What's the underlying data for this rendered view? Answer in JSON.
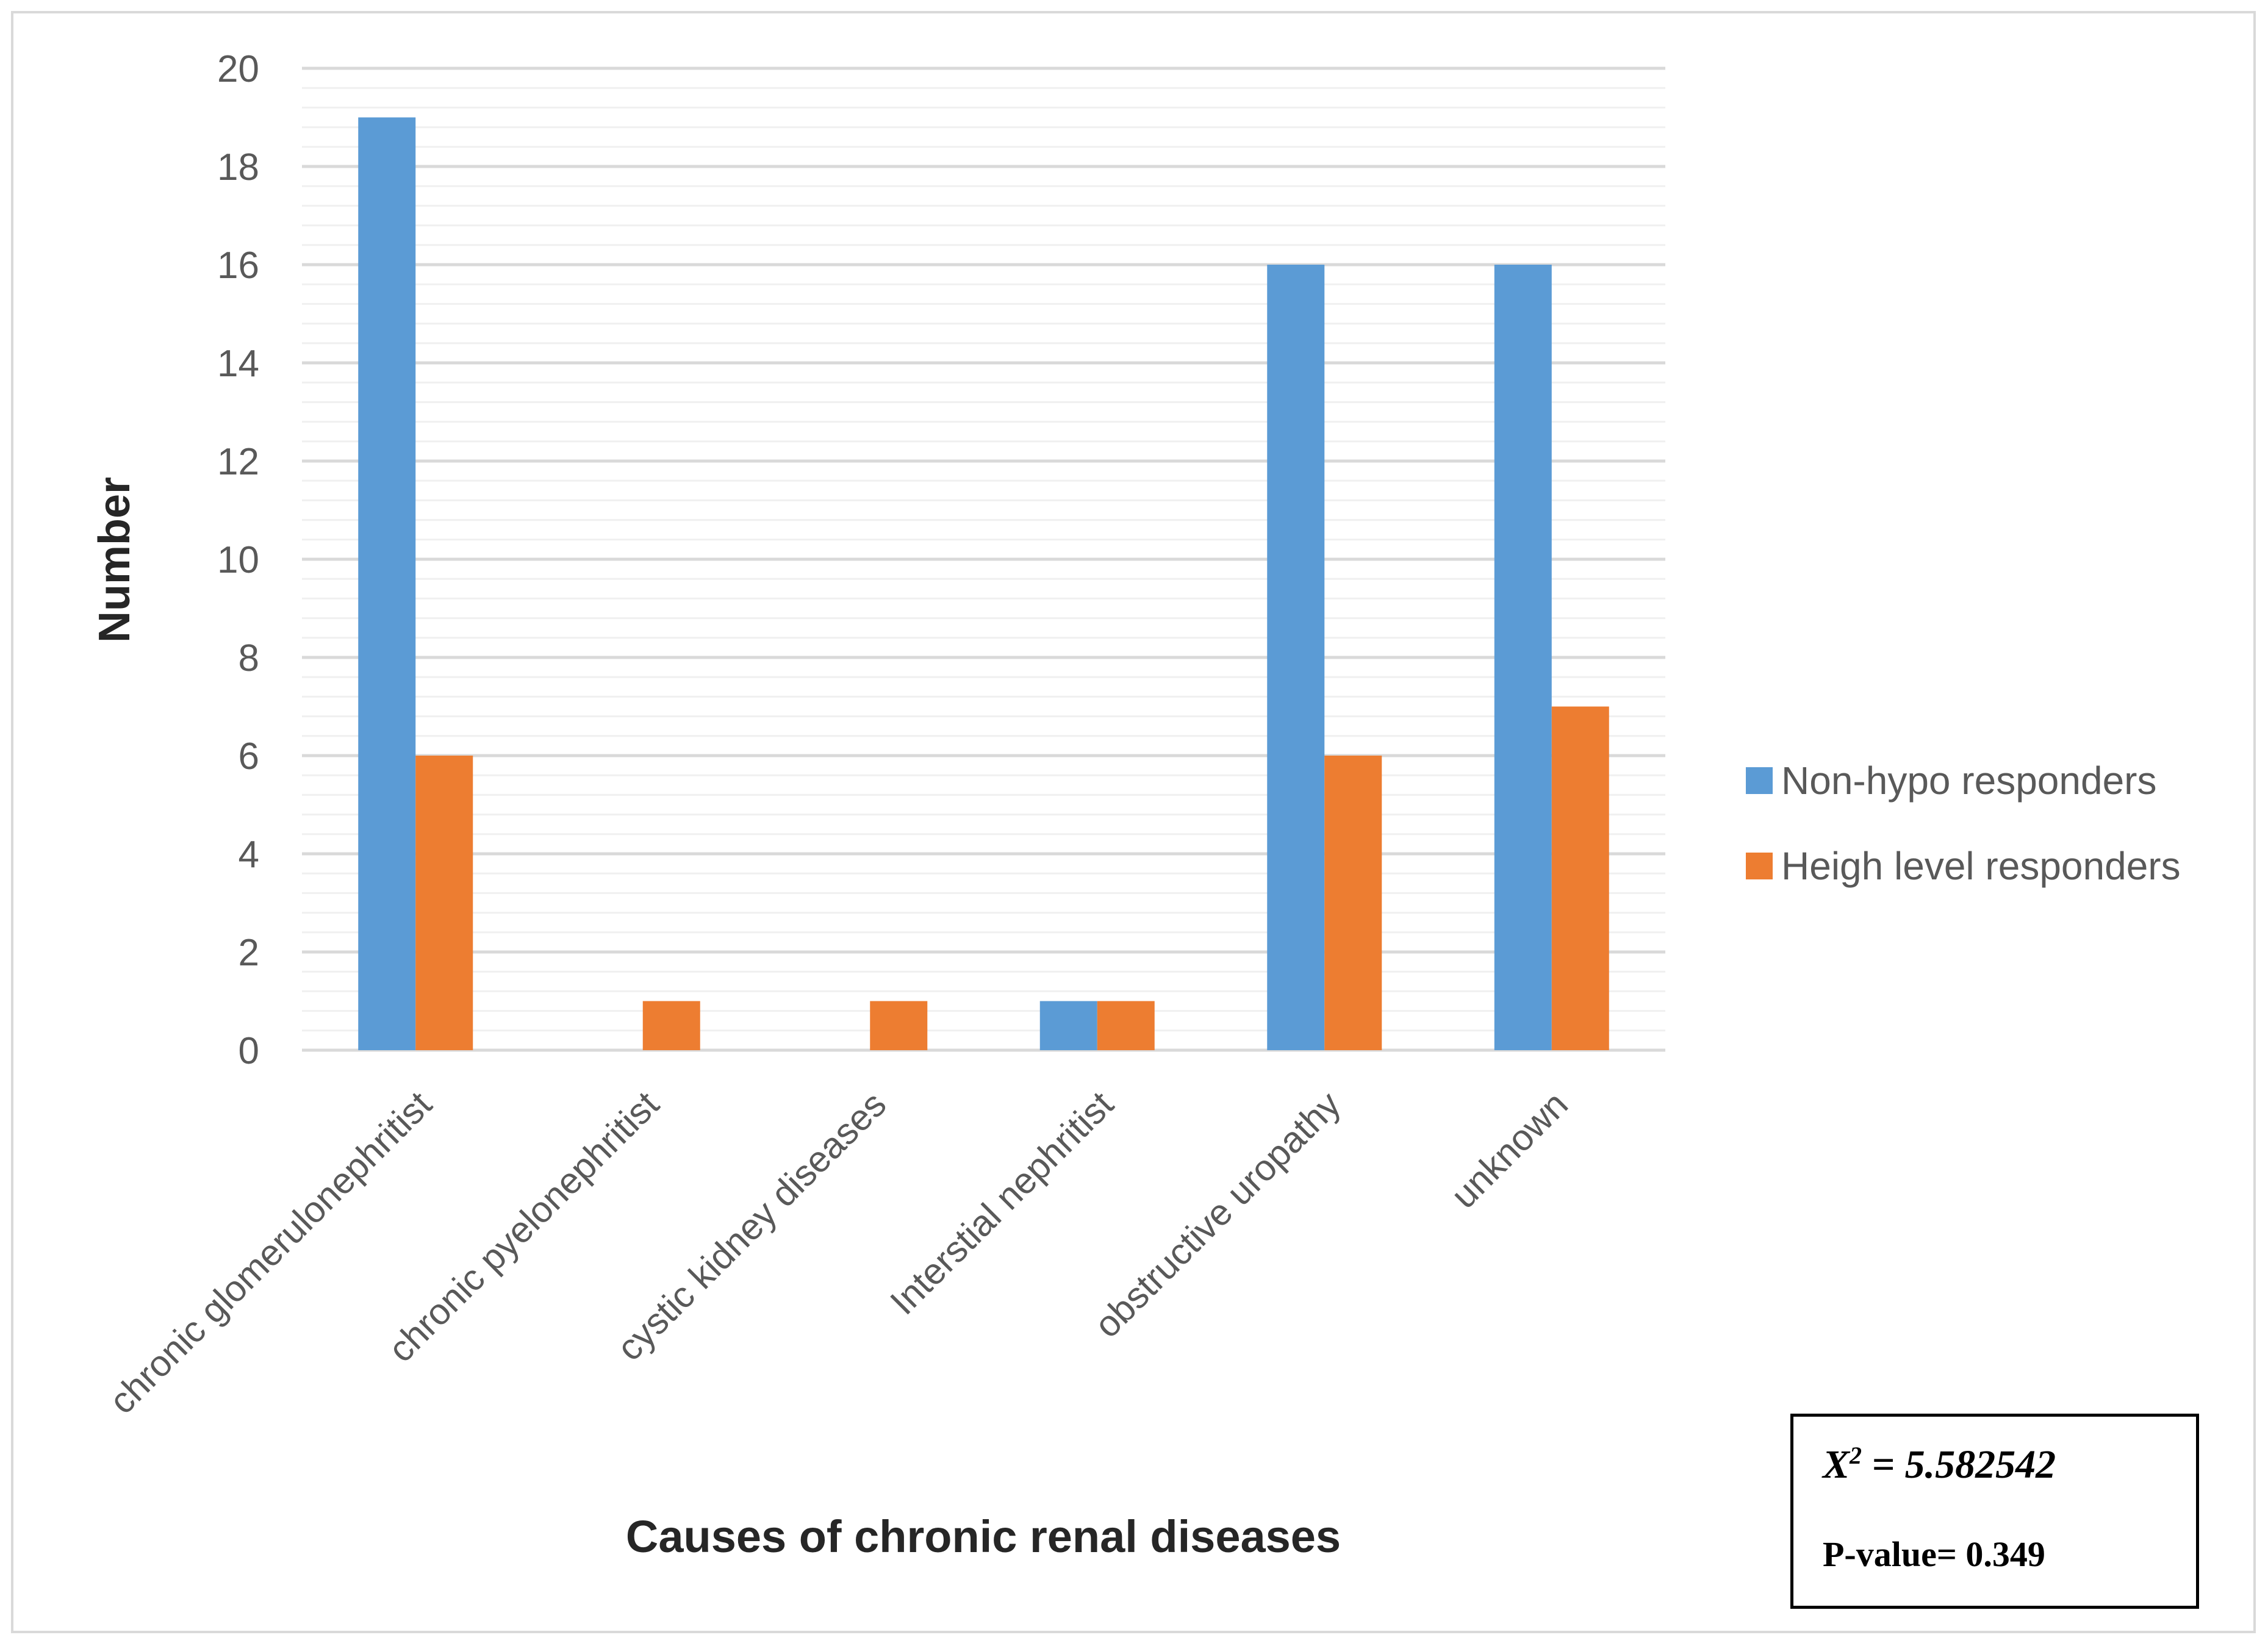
{
  "chart_data": {
    "type": "bar",
    "title": "",
    "xlabel": "Causes of chronic renal diseases",
    "ylabel": "Number",
    "categories": [
      "chronic glomerulonephritist",
      "chronic pyelonephritist",
      "cystic kidney diseases",
      "Interstial nephritist",
      "obstructive uropathy",
      "unknown"
    ],
    "series": [
      {
        "name": "Non-hypo responders",
        "values": [
          19,
          0,
          0,
          1,
          16,
          16
        ],
        "color": "#5B9BD5"
      },
      {
        "name": "Heigh level responders",
        "values": [
          6,
          1,
          1,
          1,
          6,
          7
        ],
        "color": "#ED7D31"
      }
    ],
    "ylim": [
      0,
      20
    ],
    "yticks": [
      0,
      2,
      4,
      6,
      8,
      10,
      12,
      14,
      16,
      18,
      20
    ],
    "grid": true,
    "legend_position": "right"
  },
  "stats": {
    "chi_symbol": "X",
    "chi_superscript": "2",
    "chi_value": "= 5.582542",
    "p_value": "P-value= 0.349"
  }
}
